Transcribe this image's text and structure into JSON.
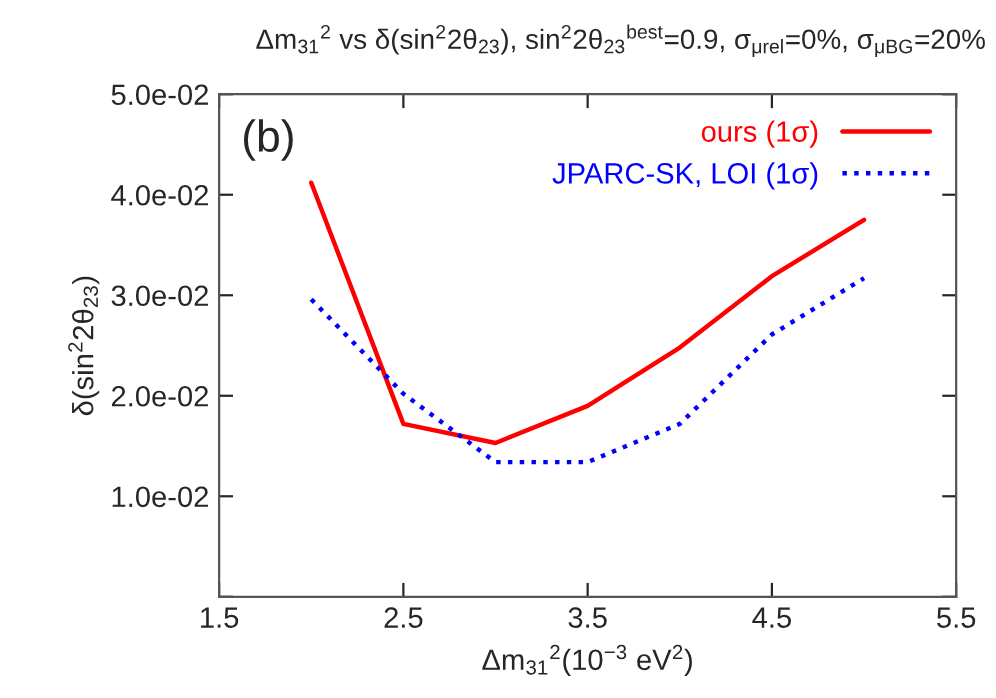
{
  "chart_data": {
    "type": "line",
    "title": "Δm$_{31}$$^{2}$ vs δ(sin$^{2}$2θ$_{23}$), sin$^{2}$2θ$_{23}$$^{best}$=0.9, σ$_{μrel}$=0%, σ$_{μBG}$=20%",
    "xlabel": "Δm$_{31}$$^{2}$(10$^{−3}$ eV$^{2}$)",
    "ylabel": "δ(sin$^{2}$2θ$_{23}$)",
    "annotations": [
      "(b)"
    ],
    "x": [
      2.0,
      2.5,
      3.0,
      3.5,
      4.0,
      4.5,
      5.0
    ],
    "series": [
      {
        "name": "ours (1σ)",
        "color": "#ff0000",
        "line_style": "solid",
        "values": [
          0.0412,
          0.0172,
          0.0153,
          0.019,
          0.0248,
          0.0319,
          0.0375
        ]
      },
      {
        "name": "JPARC-SK, LOI (1σ)",
        "color": "#0000ff",
        "line_style": "dotted",
        "values": [
          0.0296,
          0.0202,
          0.0134,
          0.0134,
          0.0172,
          0.0261,
          0.0317
        ]
      }
    ],
    "xlim": [
      1.5,
      5.5
    ],
    "xticks": [
      1.5,
      2.5,
      3.5,
      4.5,
      5.5
    ],
    "ylim": [
      0,
      0.05
    ],
    "yticks": [
      {
        "value": 0,
        "label": null
      },
      {
        "value": 0.01,
        "label": "1.0e-02"
      },
      {
        "value": 0.02,
        "label": "2.0e-02"
      },
      {
        "value": 0.03,
        "label": "3.0e-02"
      },
      {
        "value": 0.04,
        "label": "4.0e-02"
      },
      {
        "value": 0.05,
        "label": "5.0e-02"
      }
    ],
    "grid": false,
    "legend": "top right",
    "marker": "none"
  }
}
